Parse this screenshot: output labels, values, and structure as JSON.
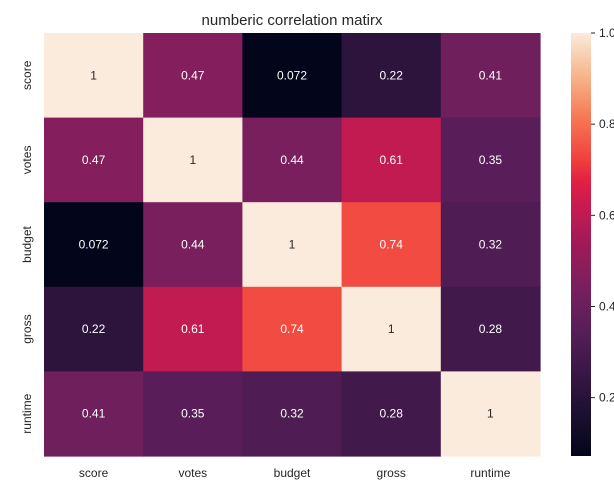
{
  "chart_data": {
    "type": "heatmap",
    "title": "numberic correlation matirx",
    "rows": [
      "score",
      "votes",
      "budget",
      "gross",
      "runtime"
    ],
    "columns": [
      "score",
      "votes",
      "budget",
      "gross",
      "runtime"
    ],
    "values": [
      [
        1,
        0.47,
        0.072,
        0.22,
        0.41
      ],
      [
        0.47,
        1,
        0.44,
        0.61,
        0.35
      ],
      [
        0.072,
        0.44,
        1,
        0.74,
        0.32
      ],
      [
        0.22,
        0.61,
        0.74,
        1,
        0.28
      ],
      [
        0.41,
        0.35,
        0.32,
        0.28,
        1
      ]
    ],
    "annotations": [
      [
        "1",
        "0.47",
        "0.072",
        "0.22",
        "0.41"
      ],
      [
        "0.47",
        "1",
        "0.44",
        "0.61",
        "0.35"
      ],
      [
        "0.072",
        "0.44",
        "1",
        "0.74",
        "0.32"
      ],
      [
        "0.22",
        "0.61",
        "0.74",
        "1",
        "0.28"
      ],
      [
        "0.41",
        "0.35",
        "0.32",
        "0.28",
        "1"
      ]
    ],
    "colormap": "rocket",
    "vmin": 0.072,
    "vmax": 1,
    "colorbar": {
      "ticks": [
        0.2,
        0.4,
        0.6,
        0.8,
        1.0
      ],
      "tick_labels": [
        "0.2",
        "0.4",
        "0.6",
        "0.8",
        "1.0"
      ],
      "placement": "right"
    },
    "grid": false
  }
}
